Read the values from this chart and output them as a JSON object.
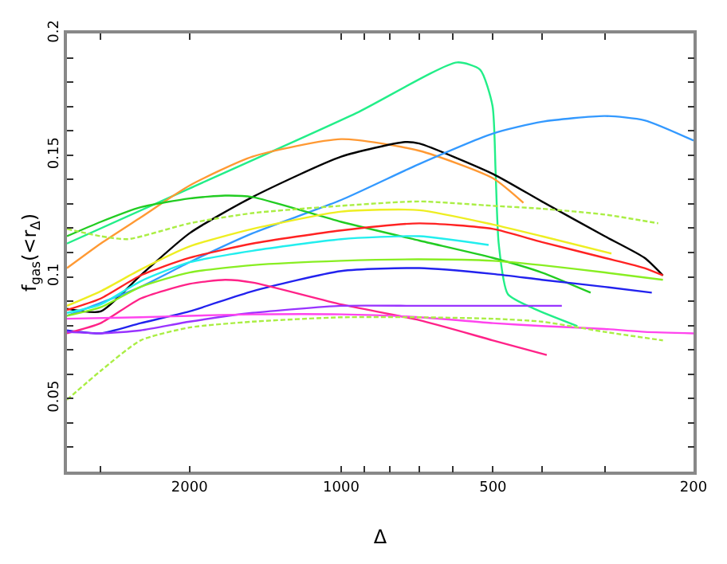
{
  "chart_data": {
    "type": "line",
    "xlabel": "Δ",
    "ylabel": "f$_{gas}$(<r$_{Δ}$)",
    "log": "x",
    "marker": "none",
    "xlim": [
      3500,
      200
    ],
    "ylim": [
      0.02,
      0.2
    ],
    "xticks": [
      {
        "value": 3000,
        "label": null
      },
      2000,
      {
        "value": 900,
        "label": null
      },
      {
        "value": 800,
        "label": null
      },
      {
        "value": 700,
        "label": null
      },
      {
        "value": 600,
        "label": null
      },
      1000,
      500,
      {
        "value": 400,
        "label": null
      },
      {
        "value": 300,
        "label": null
      },
      200
    ],
    "yticks": [
      {
        "value": 0.03,
        "label": null
      },
      {
        "value": 0.04,
        "label": null
      },
      0.05,
      {
        "value": 0.06,
        "label": null
      },
      {
        "value": 0.07,
        "label": null
      },
      {
        "value": 0.08,
        "label": null
      },
      {
        "value": 0.09,
        "label": null
      },
      0.1,
      {
        "value": 0.11,
        "label": null
      },
      {
        "value": 0.12,
        "label": null
      },
      {
        "value": 0.13,
        "label": null
      },
      {
        "value": 0.14,
        "label": null
      },
      0.15,
      {
        "value": 0.16,
        "label": null
      },
      {
        "value": 0.17,
        "label": null
      },
      {
        "value": 0.18,
        "label": null
      },
      {
        "value": 0.19,
        "label": null
      },
      0.2
    ],
    "series": [
      {
        "color": "#22ee88",
        "line_style": "solid",
        "x": [
          3500,
          2000,
          933,
          589,
          530,
          501,
          494,
          487,
          467,
          414,
          340
        ],
        "values": [
          0.1137,
          0.1363,
          0.1673,
          0.1881,
          0.1851,
          0.1703,
          0.1435,
          0.1137,
          0.0929,
          0.0869,
          0.0798
        ]
      },
      {
        "color": "#ff9933",
        "line_style": "solid",
        "x": [
          3500,
          3000,
          2500,
          2000,
          1500,
          1000,
          700,
          500,
          435
        ],
        "values": [
          0.1036,
          0.1137,
          0.1244,
          0.1375,
          0.1494,
          0.1566,
          0.1518,
          0.1405,
          0.1304
        ]
      },
      {
        "color": "#000000",
        "line_style": "solid",
        "x": [
          3500,
          3000,
          2500,
          2000,
          1500,
          1000,
          747,
          700,
          500,
          400,
          300,
          250,
          230
        ],
        "values": [
          0.0869,
          0.0858,
          0.1006,
          0.1179,
          0.1328,
          0.1494,
          0.1554,
          0.1548,
          0.1423,
          0.131,
          0.1167,
          0.1078,
          0.1006
        ]
      },
      {
        "color": "#3399ff",
        "line_style": "solid",
        "x": [
          3500,
          2500,
          2000,
          1500,
          1000,
          700,
          500,
          400,
          300,
          250,
          200
        ],
        "values": [
          0.084,
          0.0959,
          0.106,
          0.1179,
          0.1316,
          0.1464,
          0.1589,
          0.1637,
          0.1661,
          0.1643,
          0.156
        ]
      },
      {
        "color": "#22cc22",
        "line_style": "solid",
        "x": [
          3500,
          3000,
          2500,
          2000,
          1700,
          1500,
          1000,
          700,
          500,
          400,
          320
        ],
        "values": [
          0.1167,
          0.1226,
          0.1286,
          0.1322,
          0.1334,
          0.1328,
          0.1226,
          0.1149,
          0.1078,
          0.1018,
          0.0935
        ]
      },
      {
        "color": "#aaee44",
        "line_style": "dashed",
        "x": [
          3500,
          3000,
          2650,
          2000,
          1500,
          1000,
          700,
          500,
          400,
          300,
          235
        ],
        "values": [
          0.1197,
          0.1167,
          0.1155,
          0.122,
          0.1262,
          0.1292,
          0.131,
          0.1292,
          0.128,
          0.1256,
          0.122
        ]
      },
      {
        "color": "#eeee22",
        "line_style": "solid",
        "x": [
          3500,
          3000,
          2500,
          2000,
          1500,
          1000,
          700,
          500,
          400,
          291
        ],
        "values": [
          0.0881,
          0.0941,
          0.103,
          0.1125,
          0.1197,
          0.1268,
          0.1274,
          0.1215,
          0.1167,
          0.1096
        ]
      },
      {
        "color": "#ff2222",
        "line_style": "solid",
        "x": [
          3500,
          3000,
          2500,
          2000,
          1500,
          1000,
          700,
          500,
          400,
          300,
          250,
          230
        ],
        "values": [
          0.0864,
          0.0911,
          0.1006,
          0.1078,
          0.1137,
          0.1191,
          0.122,
          0.1197,
          0.1143,
          0.1078,
          0.1036,
          0.1006
        ]
      },
      {
        "color": "#22eeee",
        "line_style": "solid",
        "x": [
          3500,
          3000,
          2500,
          2000,
          1500,
          1000,
          700,
          510
        ],
        "values": [
          0.0852,
          0.0887,
          0.0982,
          0.106,
          0.1107,
          0.1155,
          0.1167,
          0.1131
        ]
      },
      {
        "color": "#88ee22",
        "line_style": "solid",
        "x": [
          3500,
          3000,
          2500,
          2000,
          1500,
          1000,
          700,
          500,
          400,
          300,
          230
        ],
        "values": [
          0.084,
          0.0875,
          0.0959,
          0.1018,
          0.1048,
          0.1066,
          0.1072,
          0.1066,
          0.1048,
          0.1018,
          0.0988
        ]
      },
      {
        "color": "#2222ee",
        "line_style": "solid",
        "x": [
          3500,
          3000,
          2500,
          2000,
          1500,
          1000,
          700,
          500,
          400,
          300,
          242
        ],
        "values": [
          0.078,
          0.0768,
          0.081,
          0.0858,
          0.0941,
          0.1024,
          0.1036,
          0.1012,
          0.0988,
          0.0959,
          0.0935
        ]
      },
      {
        "color": "#ff2288",
        "line_style": "solid",
        "x": [
          3500,
          3000,
          2500,
          2000,
          1700,
          1500,
          1000,
          700,
          500,
          391
        ],
        "values": [
          0.0768,
          0.081,
          0.0911,
          0.0971,
          0.0988,
          0.0977,
          0.0887,
          0.0822,
          0.0739,
          0.0679
        ]
      },
      {
        "color": "#9933ff",
        "line_style": "solid",
        "x": [
          3500,
          3000,
          2500,
          2000,
          1500,
          1000,
          700,
          500,
          365
        ],
        "values": [
          0.0774,
          0.0768,
          0.078,
          0.0816,
          0.0852,
          0.0881,
          0.0881,
          0.0881,
          0.0881
        ]
      },
      {
        "color": "#ff44ee",
        "line_style": "solid",
        "x": [
          3500,
          2500,
          2000,
          1500,
          1000,
          700,
          500,
          400,
          300,
          250,
          200
        ],
        "values": [
          0.0828,
          0.0834,
          0.084,
          0.0846,
          0.0846,
          0.0834,
          0.081,
          0.0798,
          0.0786,
          0.0774,
          0.0768
        ]
      },
      {
        "color": "#aaee44",
        "line_style": "dashed",
        "x": [
          3500,
          3000,
          2500,
          2000,
          1500,
          1000,
          700,
          500,
          400,
          300,
          230
        ],
        "values": [
          0.0495,
          0.0614,
          0.0739,
          0.0792,
          0.0816,
          0.0834,
          0.0834,
          0.0828,
          0.0816,
          0.0774,
          0.0739
        ]
      }
    ]
  }
}
